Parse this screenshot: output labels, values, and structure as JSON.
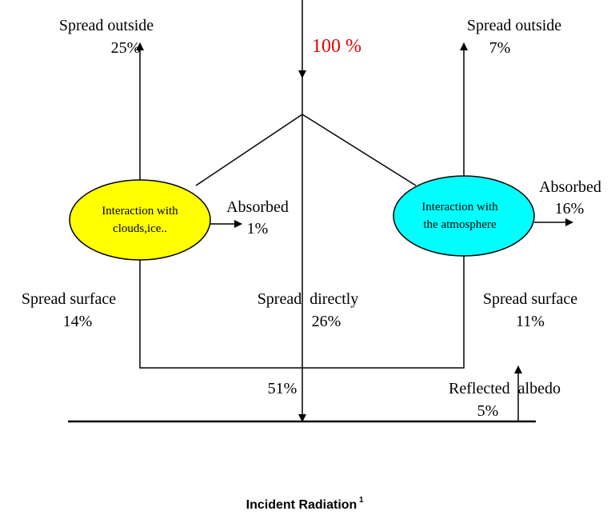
{
  "incident": "100 %",
  "left_node": {
    "line1": "Interaction with",
    "line2": "clouds,ice.."
  },
  "right_node": {
    "line1": "Interaction with",
    "line2": "the atmosphere"
  },
  "left_up": {
    "label": "Spread outside",
    "value": "25%"
  },
  "right_up": {
    "label": "Spread outside",
    "value": "7%"
  },
  "left_absorbed": {
    "label": "Absorbed",
    "value": "1%"
  },
  "right_absorbed": {
    "label": "Absorbed",
    "value": "16%"
  },
  "left_surface": {
    "label": "Spread surface",
    "value": "14%"
  },
  "center_direct": {
    "label": "Spread  directly",
    "value": "26%"
  },
  "right_surface": {
    "label": "Spread surface",
    "value": "11%"
  },
  "ground_total": "51%",
  "reflected": {
    "label": "Reflected  albedo",
    "value": "5%"
  },
  "caption": {
    "title": "Incident Radiation",
    "note": "1"
  }
}
